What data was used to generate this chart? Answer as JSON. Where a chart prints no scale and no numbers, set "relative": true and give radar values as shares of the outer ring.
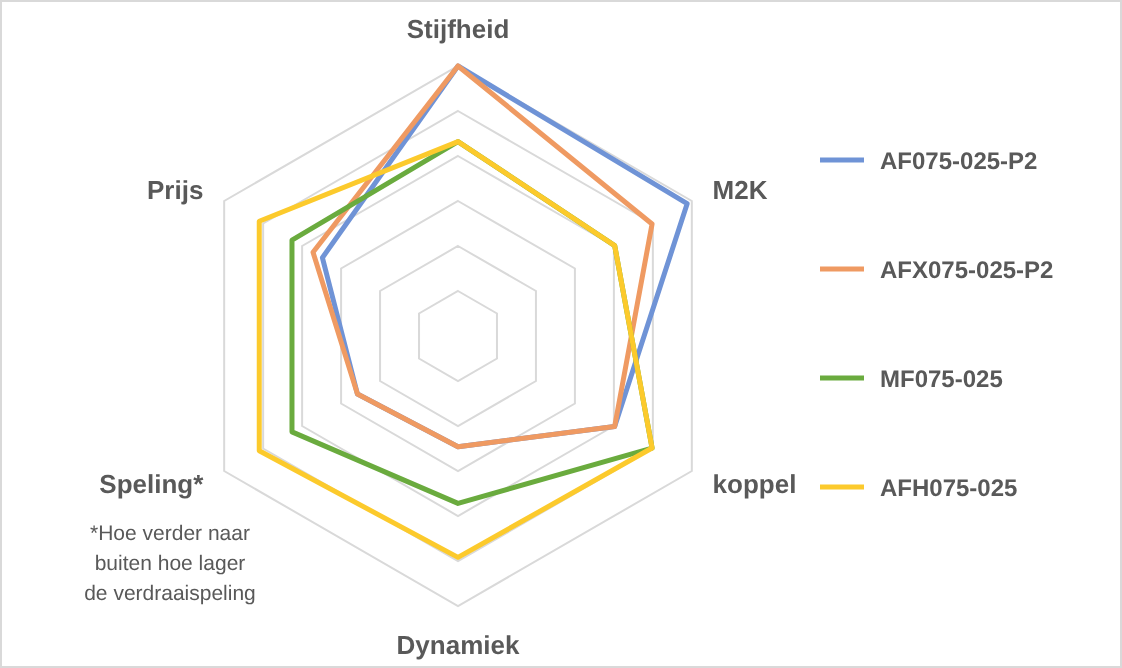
{
  "chart_data": {
    "type": "radar",
    "relative": true,
    "grid": true,
    "legend": "right",
    "marker": "none",
    "categories": [
      "Stijfheid",
      "M2K",
      "koppel",
      "Dynamiek",
      "Speling*",
      "Prijs"
    ],
    "series": [
      {
        "name": "AF075-025-P2",
        "color": "#6f93d6",
        "values": [
          1,
          0.98,
          0.67,
          0.41,
          0.43,
          0.58
        ]
      },
      {
        "name": "AFX075-025-P2",
        "color": "#ef9a62",
        "values": [
          1,
          0.83,
          0.67,
          0.41,
          0.43,
          0.62
        ]
      },
      {
        "name": "MF075-025",
        "color": "#6aab3e",
        "values": [
          0.72,
          0.67,
          0.83,
          0.62,
          0.71,
          0.71
        ]
      },
      {
        "name": "AFH075-025",
        "color": "#fcca2c",
        "values": [
          0.72,
          0.67,
          0.83,
          0.82,
          0.85,
          0.85
        ]
      }
    ],
    "annotations": [
      "*Hoe verder naar\nbuiten hoe lager\nde verdraaispeling"
    ]
  }
}
